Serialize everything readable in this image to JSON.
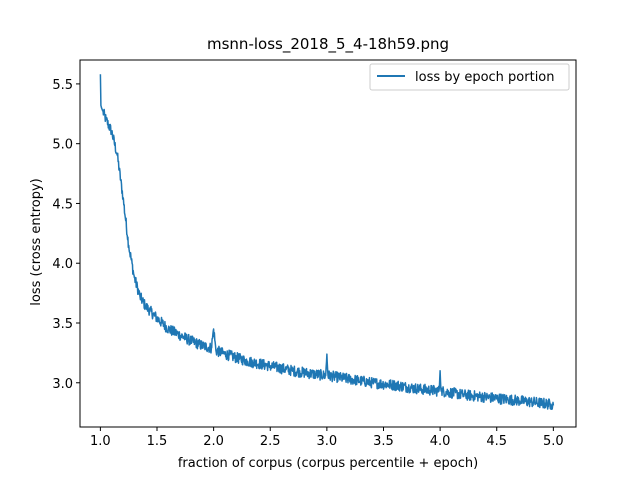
{
  "chart_data": {
    "type": "line",
    "title": "msnn-loss_2018_5_4-18h59.png",
    "xlabel": "fraction of corpus (corpus percentile + epoch)",
    "ylabel": "loss (cross entropy)",
    "xlim": [
      0.82,
      5.2
    ],
    "ylim": [
      2.63,
      5.7
    ],
    "xticks": [
      1.0,
      1.5,
      2.0,
      2.5,
      3.0,
      3.5,
      4.0,
      4.5,
      5.0
    ],
    "xtick_labels": [
      "1.0",
      "1.5",
      "2.0",
      "2.5",
      "3.0",
      "3.5",
      "4.0",
      "4.5",
      "5.0"
    ],
    "yticks": [
      3.0,
      3.5,
      4.0,
      4.5,
      5.0,
      5.5
    ],
    "ytick_labels": [
      "3.0",
      "3.5",
      "4.0",
      "4.5",
      "5.0",
      "5.5"
    ],
    "grid": false,
    "legend_position": "top-right",
    "color": "#1f77b4",
    "series": [
      {
        "name": "loss by epoch portion",
        "x": [
          1.0,
          1.005,
          1.01,
          1.05,
          1.1,
          1.15,
          1.2,
          1.25,
          1.3,
          1.35,
          1.4,
          1.5,
          1.6,
          1.7,
          1.8,
          1.9,
          1.98,
          2.0,
          2.02,
          2.1,
          2.2,
          2.3,
          2.5,
          2.7,
          2.9,
          2.99,
          3.0,
          3.01,
          3.2,
          3.4,
          3.6,
          3.8,
          3.99,
          4.0,
          4.01,
          4.2,
          4.4,
          4.6,
          4.8,
          4.98,
          5.0
        ],
        "y": [
          5.58,
          5.32,
          5.3,
          5.2,
          5.1,
          4.9,
          4.55,
          4.15,
          3.88,
          3.72,
          3.64,
          3.54,
          3.45,
          3.4,
          3.35,
          3.31,
          3.29,
          3.45,
          3.27,
          3.24,
          3.21,
          3.18,
          3.14,
          3.1,
          3.07,
          3.06,
          3.24,
          3.06,
          3.03,
          3.0,
          2.98,
          2.95,
          2.93,
          3.1,
          2.93,
          2.9,
          2.88,
          2.86,
          2.84,
          2.82,
          2.81
        ]
      }
    ]
  }
}
